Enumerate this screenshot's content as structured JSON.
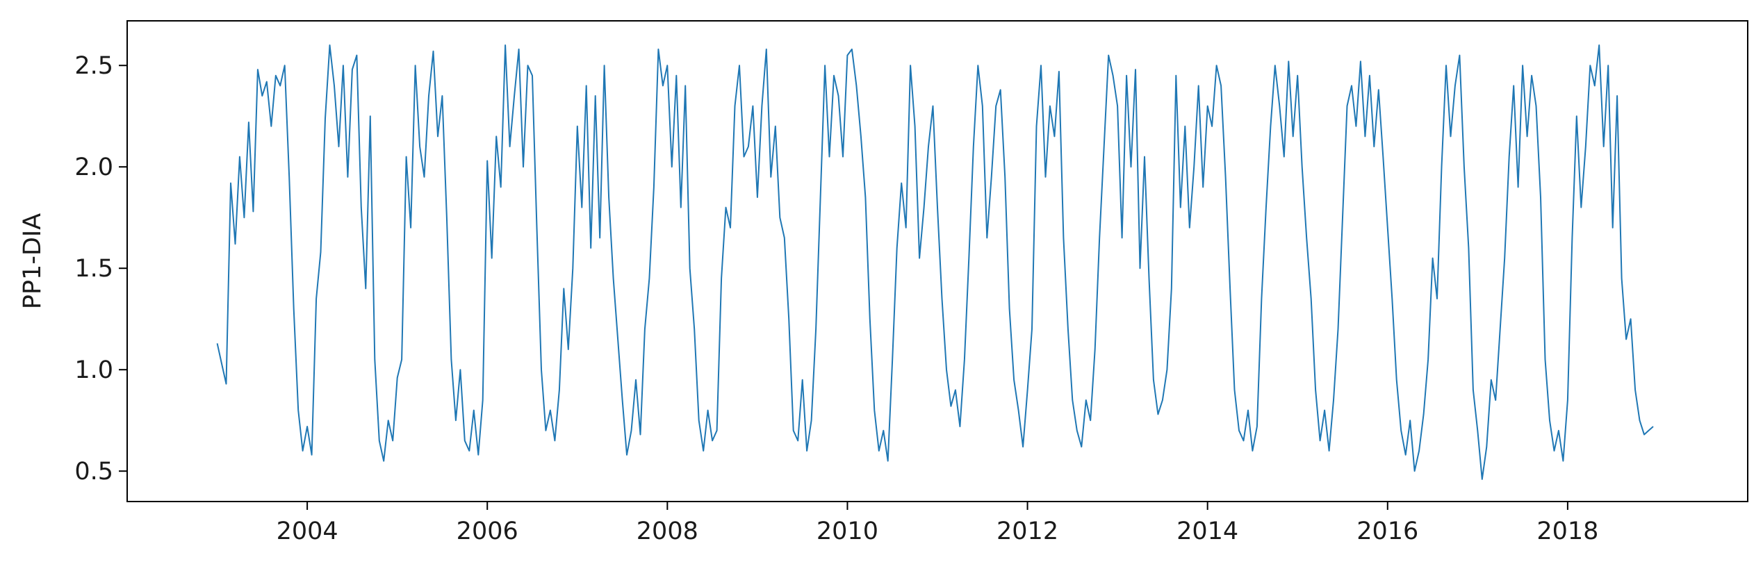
{
  "chart_data": {
    "type": "line",
    "title": "",
    "xlabel": "",
    "ylabel": "PP1-DIA",
    "xlim": [
      2002.0,
      2020.0
    ],
    "ylim": [
      0.35,
      2.72
    ],
    "xticks": [
      2004,
      2006,
      2008,
      2010,
      2012,
      2014,
      2016,
      2018
    ],
    "xtick_labels": [
      "2004",
      "2006",
      "2008",
      "2010",
      "2012",
      "2014",
      "2016",
      "2018"
    ],
    "yticks": [
      0.5,
      1.0,
      1.5,
      2.0,
      2.5
    ],
    "ytick_labels": [
      "0.5",
      "1.0",
      "1.5",
      "2.0",
      "2.5"
    ],
    "grid": false,
    "legend": "none",
    "colors": {
      "series": "#1f77b4",
      "axes": "#000000"
    },
    "series": [
      {
        "x": [
          2003.0,
          2003.05,
          2003.1,
          2003.15,
          2003.2,
          2003.25,
          2003.3,
          2003.35,
          2003.4,
          2003.45,
          2003.5,
          2003.55,
          2003.6,
          2003.65,
          2003.7,
          2003.75,
          2003.8,
          2003.85,
          2003.9,
          2003.95,
          2004.0,
          2004.05,
          2004.1,
          2004.15,
          2004.2,
          2004.25,
          2004.3,
          2004.35,
          2004.4,
          2004.45,
          2004.5,
          2004.55,
          2004.6,
          2004.65,
          2004.7,
          2004.75,
          2004.8,
          2004.85,
          2004.9,
          2004.95,
          2005.0,
          2005.05,
          2005.1,
          2005.15,
          2005.2,
          2005.25,
          2005.3,
          2005.35,
          2005.4,
          2005.45,
          2005.5,
          2005.55,
          2005.6,
          2005.65,
          2005.7,
          2005.75,
          2005.8,
          2005.85,
          2005.9,
          2005.95,
          2006.0,
          2006.05,
          2006.1,
          2006.15,
          2006.2,
          2006.25,
          2006.3,
          2006.35,
          2006.4,
          2006.45,
          2006.5,
          2006.55,
          2006.6,
          2006.65,
          2006.7,
          2006.75,
          2006.8,
          2006.85,
          2006.9,
          2006.95,
          2007.0,
          2007.05,
          2007.1,
          2007.15,
          2007.2,
          2007.25,
          2007.3,
          2007.35,
          2007.4,
          2007.45,
          2007.5,
          2007.55,
          2007.6,
          2007.65,
          2007.7,
          2007.75,
          2007.8,
          2007.85,
          2007.9,
          2007.95,
          2008.0,
          2008.05,
          2008.1,
          2008.15,
          2008.2,
          2008.25,
          2008.3,
          2008.35,
          2008.4,
          2008.45,
          2008.5,
          2008.55,
          2008.6,
          2008.65,
          2008.7,
          2008.75,
          2008.8,
          2008.85,
          2008.9,
          2008.95,
          2009.0,
          2009.05,
          2009.1,
          2009.15,
          2009.2,
          2009.25,
          2009.3,
          2009.35,
          2009.4,
          2009.45,
          2009.5,
          2009.55,
          2009.6,
          2009.65,
          2009.7,
          2009.75,
          2009.8,
          2009.85,
          2009.9,
          2009.95,
          2010.0,
          2010.05,
          2010.1,
          2010.15,
          2010.2,
          2010.25,
          2010.3,
          2010.35,
          2010.4,
          2010.45,
          2010.5,
          2010.55,
          2010.6,
          2010.65,
          2010.7,
          2010.75,
          2010.8,
          2010.85,
          2010.9,
          2010.95,
          2011.0,
          2011.05,
          2011.1,
          2011.15,
          2011.2,
          2011.25,
          2011.3,
          2011.35,
          2011.4,
          2011.45,
          2011.5,
          2011.55,
          2011.6,
          2011.65,
          2011.7,
          2011.75,
          2011.8,
          2011.85,
          2011.9,
          2011.95,
          2012.0,
          2012.05,
          2012.1,
          2012.15,
          2012.2,
          2012.25,
          2012.3,
          2012.35,
          2012.4,
          2012.45,
          2012.5,
          2012.55,
          2012.6,
          2012.65,
          2012.7,
          2012.75,
          2012.8,
          2012.85,
          2012.9,
          2012.95,
          2013.0,
          2013.05,
          2013.1,
          2013.15,
          2013.2,
          2013.25,
          2013.3,
          2013.35,
          2013.4,
          2013.45,
          2013.5,
          2013.55,
          2013.6,
          2013.65,
          2013.7,
          2013.75,
          2013.8,
          2013.85,
          2013.9,
          2013.95,
          2014.0,
          2014.05,
          2014.1,
          2014.15,
          2014.2,
          2014.25,
          2014.3,
          2014.35,
          2014.4,
          2014.45,
          2014.5,
          2014.55,
          2014.6,
          2014.65,
          2014.7,
          2014.75,
          2014.8,
          2014.85,
          2014.9,
          2014.95,
          2015.0,
          2015.05,
          2015.1,
          2015.15,
          2015.2,
          2015.25,
          2015.3,
          2015.35,
          2015.4,
          2015.45,
          2015.5,
          2015.55,
          2015.6,
          2015.65,
          2015.7,
          2015.75,
          2015.8,
          2015.85,
          2015.9,
          2015.95,
          2016.0,
          2016.05,
          2016.1,
          2016.15,
          2016.2,
          2016.25,
          2016.3,
          2016.35,
          2016.4,
          2016.45,
          2016.5,
          2016.55,
          2016.6,
          2016.65,
          2016.7,
          2016.75,
          2016.8,
          2016.85,
          2016.9,
          2016.95,
          2017.0,
          2017.05,
          2017.1,
          2017.15,
          2017.2,
          2017.25,
          2017.3,
          2017.35,
          2017.4,
          2017.45,
          2017.5,
          2017.55,
          2017.6,
          2017.65,
          2017.7,
          2017.75,
          2017.8,
          2017.85,
          2017.9,
          2017.95,
          2018.0,
          2018.05,
          2018.1,
          2018.15,
          2018.2,
          2018.25,
          2018.3,
          2018.35,
          2018.4,
          2018.45,
          2018.5,
          2018.55,
          2018.6,
          2018.65,
          2018.7,
          2018.75,
          2018.8,
          2018.85,
          2018.9,
          2018.95
        ],
        "values": [
          1.13,
          1.03,
          0.93,
          1.92,
          1.62,
          2.05,
          1.75,
          2.22,
          1.78,
          2.48,
          2.35,
          2.42,
          2.2,
          2.45,
          2.4,
          2.5,
          1.95,
          1.3,
          0.8,
          0.6,
          0.72,
          0.58,
          1.35,
          1.58,
          2.24,
          2.6,
          2.4,
          2.1,
          2.5,
          1.95,
          2.48,
          2.55,
          1.8,
          1.4,
          2.25,
          1.05,
          0.65,
          0.55,
          0.75,
          0.65,
          0.96,
          1.05,
          2.05,
          1.7,
          2.5,
          2.1,
          1.95,
          2.35,
          2.57,
          2.15,
          2.35,
          1.75,
          1.05,
          0.75,
          1.0,
          0.65,
          0.6,
          0.8,
          0.58,
          0.85,
          2.03,
          1.55,
          2.15,
          1.9,
          2.6,
          2.1,
          2.35,
          2.58,
          2.0,
          2.5,
          2.45,
          1.7,
          1.0,
          0.7,
          0.8,
          0.65,
          0.9,
          1.4,
          1.1,
          1.5,
          2.2,
          1.8,
          2.4,
          1.6,
          2.35,
          1.65,
          2.5,
          1.85,
          1.45,
          1.15,
          0.85,
          0.58,
          0.7,
          0.95,
          0.68,
          1.2,
          1.45,
          1.9,
          2.58,
          2.4,
          2.5,
          2.0,
          2.45,
          1.8,
          2.4,
          1.5,
          1.2,
          0.75,
          0.6,
          0.8,
          0.65,
          0.7,
          1.45,
          1.8,
          1.7,
          2.3,
          2.5,
          2.05,
          2.1,
          2.3,
          1.85,
          2.3,
          2.58,
          1.95,
          2.2,
          1.75,
          1.65,
          1.25,
          0.7,
          0.65,
          0.95,
          0.6,
          0.75,
          1.2,
          1.85,
          2.5,
          2.05,
          2.45,
          2.35,
          2.05,
          2.55,
          2.58,
          2.4,
          2.15,
          1.85,
          1.25,
          0.8,
          0.6,
          0.7,
          0.55,
          1.05,
          1.6,
          1.92,
          1.7,
          2.5,
          2.2,
          1.55,
          1.8,
          2.1,
          2.3,
          1.8,
          1.35,
          1.0,
          0.82,
          0.9,
          0.72,
          1.05,
          1.55,
          2.1,
          2.5,
          2.3,
          1.65,
          1.95,
          2.3,
          2.38,
          1.95,
          1.3,
          0.95,
          0.8,
          0.62,
          0.9,
          1.2,
          2.2,
          2.5,
          1.95,
          2.3,
          2.15,
          2.47,
          1.65,
          1.2,
          0.85,
          0.7,
          0.62,
          0.85,
          0.75,
          1.1,
          1.65,
          2.1,
          2.55,
          2.45,
          2.3,
          1.65,
          2.45,
          2.0,
          2.48,
          1.5,
          2.05,
          1.45,
          0.95,
          0.78,
          0.85,
          1.0,
          1.4,
          2.45,
          1.8,
          2.2,
          1.7,
          2.0,
          2.4,
          1.9,
          2.3,
          2.2,
          2.5,
          2.4,
          1.95,
          1.4,
          0.9,
          0.7,
          0.65,
          0.8,
          0.6,
          0.72,
          1.35,
          1.8,
          2.2,
          2.5,
          2.3,
          2.05,
          2.52,
          2.15,
          2.45,
          2.0,
          1.65,
          1.35,
          0.9,
          0.65,
          0.8,
          0.6,
          0.85,
          1.2,
          1.75,
          2.3,
          2.4,
          2.2,
          2.52,
          2.15,
          2.45,
          2.1,
          2.38,
          2.05,
          1.7,
          1.35,
          0.95,
          0.7,
          0.58,
          0.75,
          0.5,
          0.6,
          0.78,
          1.05,
          1.55,
          1.35,
          2.0,
          2.5,
          2.15,
          2.4,
          2.55,
          2.0,
          1.6,
          0.9,
          0.7,
          0.46,
          0.62,
          0.95,
          0.85,
          1.2,
          1.55,
          2.05,
          2.4,
          1.9,
          2.5,
          2.15,
          2.45,
          2.3,
          1.85,
          1.05,
          0.75,
          0.6,
          0.7,
          0.55,
          0.85,
          1.65,
          2.25,
          1.8,
          2.1,
          2.5,
          2.4,
          2.6,
          2.1,
          2.5,
          1.7,
          2.35,
          1.45,
          1.15,
          1.25,
          0.9,
          0.75,
          0.68,
          0.7,
          0.72
        ]
      }
    ]
  }
}
